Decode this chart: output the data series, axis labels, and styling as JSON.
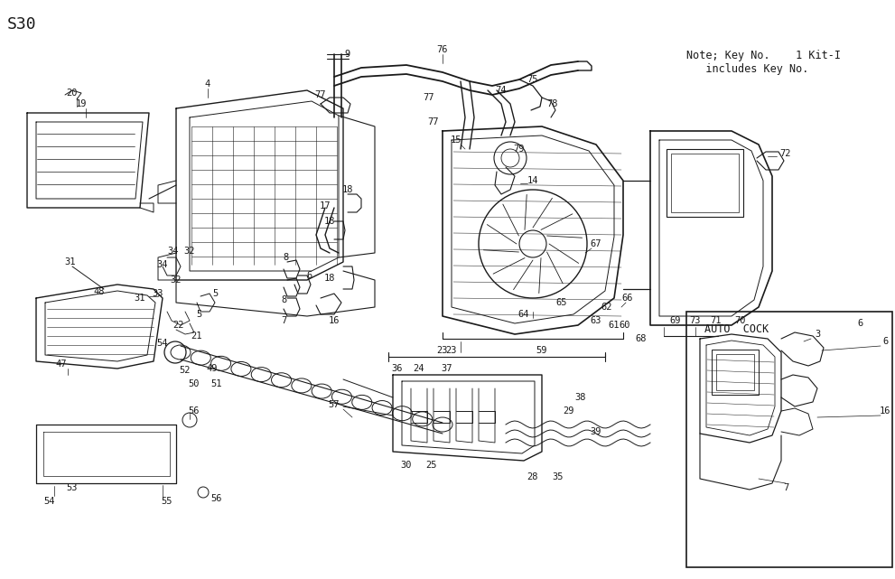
{
  "title": "S30",
  "bg_color": "#ffffff",
  "line_color": "#1a1a1a",
  "note_line1": "Note; Key No.    1 Kit-I",
  "note_line2": "   includes Key No.",
  "auto_cock_label": "AUTO  COCK",
  "fig_width": 9.91,
  "fig_height": 6.41,
  "dpi": 100,
  "font_monospace": "DejaVu Sans Mono",
  "title_fontsize": 13,
  "note_fontsize": 8.5,
  "label_fontsize": 7.5
}
